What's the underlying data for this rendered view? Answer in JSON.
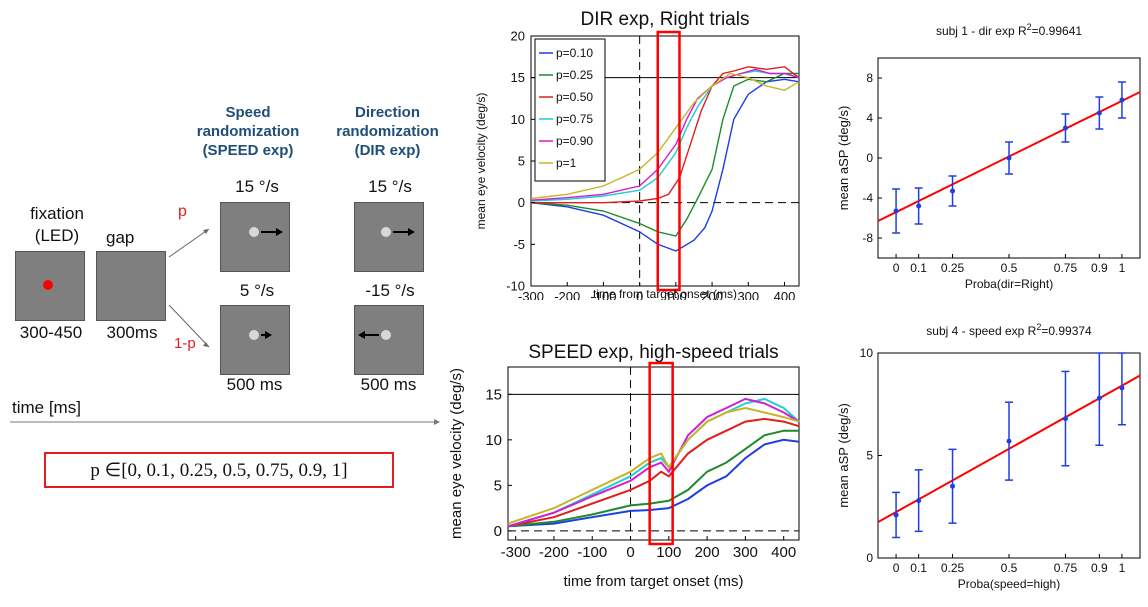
{
  "paradigm": {
    "fixation_label": "fixation\n(LED)",
    "gap_label": "gap",
    "p_label": "p",
    "one_minus_p_label": "1-p",
    "fixation_duration": "300-450",
    "gap_duration": "300ms",
    "speed_header": "Speed\nrandomization\n(SPEED exp)",
    "direction_header": "Direction\nrandomization\n(DIR exp)",
    "speed_top": "15 °/s",
    "speed_bottom": "5 °/s",
    "dir_top": "15 °/s",
    "dir_bottom": "-15 °/s",
    "speed_duration": "500 ms",
    "dir_duration": "500 ms",
    "time_axis": "time [ms]",
    "p_set": "p ∈[0, 0.1, 0.25, 0.5, 0.75, 0.9, 1]",
    "colors": {
      "box": "#7f7f7f",
      "fixation_dot": "#ff0000",
      "accent": "#e02020",
      "header": "#1f4e79"
    }
  },
  "chart_data": [
    {
      "type": "line",
      "title": "DIR exp, Right trials",
      "xlabel": "time from target onset (ms)",
      "ylabel": "mean eye velocity (deg/s)",
      "xlim": [
        -300,
        440
      ],
      "ylim": [
        -10,
        20
      ],
      "xticks": [
        -300,
        -200,
        -100,
        0,
        100,
        200,
        300,
        400
      ],
      "yticks": [
        -10,
        -5,
        0,
        5,
        10,
        15,
        20
      ],
      "reference_lines": {
        "horizontal": [
          0,
          15
        ],
        "vertical": [
          0
        ]
      },
      "highlight_window": [
        50,
        110
      ],
      "legend": "top-left",
      "series": [
        {
          "name": "p=0.10",
          "color": "#1f3ee0",
          "x": [
            -300,
            -200,
            -100,
            0,
            50,
            100,
            150,
            180,
            200,
            230,
            260,
            300,
            350,
            400,
            440
          ],
          "y": [
            0,
            -0.5,
            -1.5,
            -3.5,
            -5,
            -5.8,
            -4.5,
            -3,
            -1,
            4,
            10,
            13,
            14.5,
            14.8,
            14.5
          ]
        },
        {
          "name": "p=0.25",
          "color": "#1e8a2e",
          "x": [
            -300,
            -200,
            -100,
            0,
            50,
            100,
            130,
            160,
            200,
            230,
            260,
            300,
            350,
            400,
            440
          ],
          "y": [
            0,
            -0.3,
            -1,
            -2.5,
            -3.5,
            -4,
            -2,
            0.5,
            4,
            10,
            14,
            14.8,
            14.5,
            15.5,
            15.5
          ]
        },
        {
          "name": "p=0.50",
          "color": "#e01e1e",
          "x": [
            -300,
            -200,
            -100,
            0,
            50,
            80,
            110,
            140,
            170,
            200,
            230,
            260,
            300,
            350,
            400,
            440
          ],
          "y": [
            0,
            0,
            0,
            0.2,
            0.5,
            1,
            3,
            7,
            11,
            14,
            15.5,
            15.8,
            16.3,
            16,
            16.3,
            15
          ]
        },
        {
          "name": "p=0.75",
          "color": "#1ecfcf",
          "x": [
            -300,
            -200,
            -100,
            0,
            50,
            100,
            130,
            160,
            200,
            240,
            280,
            320,
            360,
            400,
            440
          ],
          "y": [
            0.2,
            0.4,
            0.8,
            1.5,
            3,
            6,
            9,
            11.5,
            14,
            15,
            15.5,
            15.8,
            15.5,
            15.5,
            15
          ]
        },
        {
          "name": "p=0.90",
          "color": "#d21ed2",
          "x": [
            -300,
            -200,
            -100,
            0,
            50,
            100,
            130,
            160,
            200,
            240,
            280,
            320,
            360,
            400,
            440
          ],
          "y": [
            0.3,
            0.6,
            1,
            2,
            4,
            7,
            10,
            12.5,
            14,
            15,
            15.5,
            16,
            15.5,
            15.5,
            15
          ]
        },
        {
          "name": "p=1",
          "color": "#c8b428",
          "x": [
            -300,
            -200,
            -100,
            -50,
            0,
            50,
            100,
            150,
            200,
            250,
            300,
            350,
            400,
            440
          ],
          "y": [
            0.5,
            1,
            2,
            3,
            4,
            6,
            9,
            12,
            14,
            15.5,
            15,
            14,
            13.5,
            14.5
          ]
        }
      ]
    },
    {
      "type": "line",
      "title": "SPEED exp, high-speed trials",
      "xlabel": "time from target onset (ms)",
      "ylabel": "mean eye velocity (deg/s)",
      "xlim": [
        -320,
        440
      ],
      "ylim": [
        -1,
        18
      ],
      "xticks": [
        -300,
        -200,
        -100,
        0,
        100,
        200,
        300,
        400
      ],
      "yticks": [
        0,
        5,
        10,
        15
      ],
      "reference_lines": {
        "horizontal": [
          0,
          15
        ],
        "vertical": [
          0
        ]
      },
      "highlight_window": [
        50,
        110
      ],
      "series": [
        {
          "color": "#1f3ee0",
          "x": [
            -320,
            -200,
            -100,
            0,
            50,
            100,
            150,
            200,
            250,
            300,
            350,
            400,
            440
          ],
          "y": [
            0.5,
            0.8,
            1.5,
            2.2,
            2.3,
            2.5,
            3.5,
            5,
            6,
            8,
            9.5,
            10,
            9.8
          ]
        },
        {
          "color": "#1e8a2e",
          "x": [
            -320,
            -200,
            -100,
            0,
            50,
            100,
            150,
            200,
            250,
            300,
            350,
            400,
            440
          ],
          "y": [
            0.5,
            1,
            1.8,
            2.8,
            3,
            3.3,
            4.5,
            6.5,
            7.5,
            9,
            10.5,
            11,
            11
          ]
        },
        {
          "color": "#e01e1e",
          "x": [
            -320,
            -200,
            -100,
            0,
            50,
            80,
            100,
            150,
            200,
            250,
            300,
            350,
            400,
            440
          ],
          "y": [
            0.5,
            1.5,
            3,
            4.5,
            5.5,
            6.5,
            6,
            8.5,
            10,
            11,
            12,
            12.3,
            12,
            11.5
          ]
        },
        {
          "color": "#1ecfcf",
          "x": [
            -320,
            -200,
            -100,
            0,
            50,
            80,
            100,
            150,
            200,
            250,
            300,
            350,
            400,
            440
          ],
          "y": [
            0.5,
            2,
            4,
            6,
            7.5,
            8,
            7,
            10,
            12,
            13,
            14,
            14.5,
            13.5,
            12
          ]
        },
        {
          "color": "#d21ed2",
          "x": [
            -320,
            -200,
            -100,
            0,
            50,
            80,
            100,
            150,
            200,
            250,
            300,
            350,
            400,
            440
          ],
          "y": [
            0.5,
            2,
            3.8,
            5.5,
            7,
            7.5,
            6.5,
            10.5,
            12.5,
            13.5,
            14.5,
            14,
            13,
            12
          ]
        },
        {
          "color": "#c8b428",
          "x": [
            -320,
            -200,
            -100,
            0,
            50,
            80,
            100,
            150,
            200,
            250,
            300,
            350,
            400,
            440
          ],
          "y": [
            0.8,
            2.5,
            4.5,
            6.5,
            8,
            8.5,
            7,
            10,
            12,
            13,
            13.5,
            13,
            12.5,
            12
          ]
        }
      ]
    },
    {
      "type": "scatter",
      "title": "subj 1 - dir exp R",
      "title_sup": "2",
      "title_tail": "=0.99641",
      "xlabel": "Proba(dir=Right)",
      "ylabel": "mean aSP (deg/s)",
      "xlim": [
        -0.08,
        1.08
      ],
      "ylim": [
        -10,
        10
      ],
      "xticks": [
        0,
        0.1,
        0.25,
        0.5,
        0.75,
        0.9,
        1
      ],
      "xticklabels": [
        "0",
        "0.1",
        "0.25",
        "0.5",
        "0.75",
        "0.9",
        "1"
      ],
      "yticks": [
        -8,
        -4,
        0,
        4,
        8
      ],
      "x": [
        0,
        0.1,
        0.25,
        0.5,
        0.75,
        0.9,
        1
      ],
      "y": [
        -5.3,
        -4.8,
        -3.3,
        0,
        3,
        4.5,
        5.8
      ],
      "err": [
        2.2,
        1.8,
        1.5,
        1.6,
        1.4,
        1.6,
        1.8
      ],
      "fit": {
        "x": [
          -0.08,
          1.08
        ],
        "y": [
          -6.3,
          6.6
        ]
      },
      "marker_color": "#1f3ee0",
      "fit_color": "#ff0000"
    },
    {
      "type": "scatter",
      "title": "subj 4 - speed exp R",
      "title_sup": "2",
      "title_tail": "=0.99374",
      "xlabel": "Proba(speed=high)",
      "ylabel": "mean aSP (deg/s)",
      "xlim": [
        -0.08,
        1.08
      ],
      "ylim": [
        0,
        10
      ],
      "xticks": [
        0,
        0.1,
        0.25,
        0.5,
        0.75,
        0.9,
        1
      ],
      "xticklabels": [
        "0",
        "0.1",
        "0.25",
        "0.5",
        "0.75",
        "0.9",
        "1"
      ],
      "yticks": [
        0,
        5,
        10
      ],
      "x": [
        0,
        0.1,
        0.25,
        0.5,
        0.75,
        0.9,
        1
      ],
      "y": [
        2.1,
        2.8,
        3.5,
        5.7,
        6.8,
        7.8,
        8.3
      ],
      "err": [
        1.1,
        1.5,
        1.8,
        1.9,
        2.3,
        2.3,
        1.8
      ],
      "fit": {
        "x": [
          -0.08,
          1.08
        ],
        "y": [
          1.75,
          8.9
        ]
      },
      "marker_color": "#1f3ee0",
      "fit_color": "#ff0000"
    }
  ]
}
